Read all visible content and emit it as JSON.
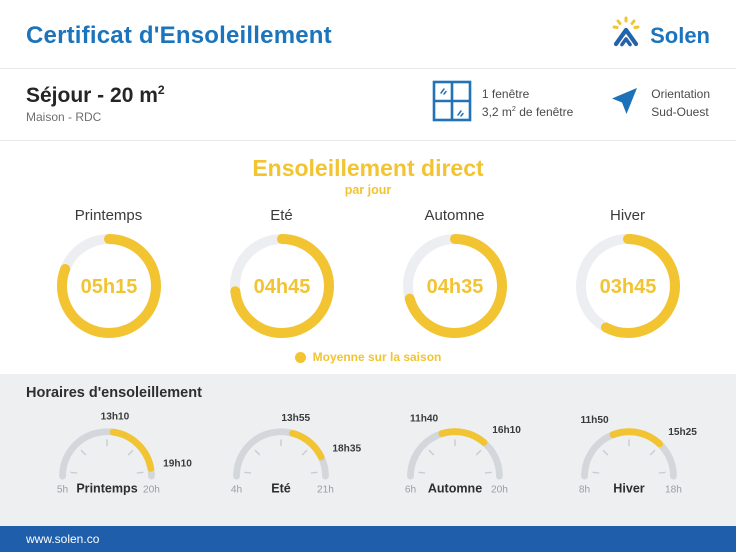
{
  "header": {
    "title": "Certificat d'Ensoleillement",
    "brand": "Solen"
  },
  "room": {
    "title": "Séjour - 20 m",
    "title_sup": "2",
    "subtitle": "Maison - RDC"
  },
  "window_info": {
    "line1": "1 fenêtre",
    "line2_pre": "3,2 m",
    "line2_sup": "2",
    "line2_post": " de fenêtre"
  },
  "orientation": {
    "label": "Orientation",
    "value": "Sud-Ouest"
  },
  "icons": {
    "logo": "solen-house-sun-icon",
    "window": "window-icon",
    "orientation": "navigation-arrow-icon",
    "legend": "legend-dot"
  },
  "chart_data": [
    {
      "type": "donut-progress",
      "title": "Ensoleillement direct",
      "subtitle": "par jour",
      "legend": "Moyenne sur la saison",
      "ring_full_minutes": 390,
      "items": [
        {
          "season": "Printemps",
          "value": "05h15",
          "minutes": 315
        },
        {
          "season": "Eté",
          "value": "04h45",
          "minutes": 285
        },
        {
          "season": "Automne",
          "value": "04h35",
          "minutes": 275
        },
        {
          "season": "Hiver",
          "value": "03h45",
          "minutes": 225
        }
      ]
    },
    {
      "type": "semicircle-gauge",
      "title": "Horaires d'ensoleillement",
      "items": [
        {
          "season": "Printemps",
          "scale_start": "5h",
          "scale_end": "20h",
          "sun_start": "13h10",
          "sun_end": "19h10"
        },
        {
          "season": "Eté",
          "scale_start": "4h",
          "scale_end": "21h",
          "sun_start": "13h55",
          "sun_end": "18h35"
        },
        {
          "season": "Automne",
          "scale_start": "6h",
          "scale_end": "20h",
          "sun_start": "11h40",
          "sun_end": "16h10"
        },
        {
          "season": "Hiver",
          "scale_start": "8h",
          "scale_end": "18h",
          "sun_start": "11h50",
          "sun_end": "15h25"
        }
      ]
    }
  ],
  "footer": {
    "url": "www.solen.co"
  },
  "colors": {
    "brand_blue": "#1C74BD",
    "footer_blue": "#1E5EAB",
    "accent_yellow": "#F2C431",
    "ring_track": "#EDEEF2",
    "gauge_track": "#D3D7DB",
    "tick_color": "#C9CDD3",
    "scale_label": "#9A9FA6",
    "time_label": "#3B3B3B",
    "section_bg": "#EDEFF1",
    "page_bg": "#FFFFFF",
    "divider": "#E8E8E8",
    "text_dark": "#252525",
    "text_gray": "#6F6F6F"
  }
}
